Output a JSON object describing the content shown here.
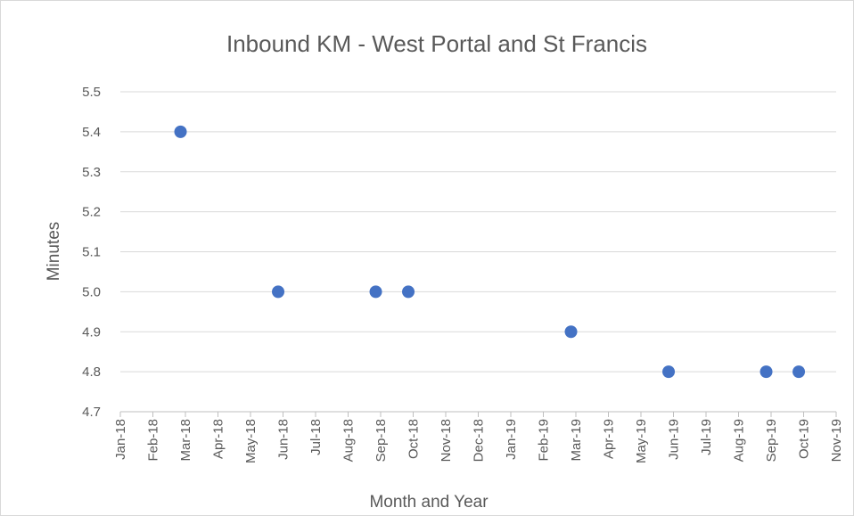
{
  "chart_data": {
    "type": "scatter",
    "title": "Inbound KM - West Portal and St Francis",
    "x_label": "Month and Year",
    "y_label": "Minutes",
    "x": [
      "2018-02",
      "2018-05",
      "2018-08",
      "2018-09",
      "2019-02",
      "2019-05",
      "2019-08",
      "2019-09"
    ],
    "series": [
      {
        "name": "Minutes",
        "color": "#4472c4",
        "values": [
          5.4,
          5.0,
          5.0,
          5.0,
          4.9,
          4.8,
          4.8,
          4.8
        ]
      }
    ],
    "xlim": [
      "2018-01",
      "2019-11"
    ],
    "xticks": [
      {
        "value": "2018-01",
        "label": "Jan-18"
      },
      {
        "value": "2018-02",
        "label": "Feb-18"
      },
      {
        "value": "2018-03",
        "label": "Mar-18"
      },
      {
        "value": "2018-04",
        "label": "Apr-18"
      },
      {
        "value": "2018-05",
        "label": "May-18"
      },
      {
        "value": "2018-06",
        "label": "Jun-18"
      },
      {
        "value": "2018-07",
        "label": "Jul-18"
      },
      {
        "value": "2018-08",
        "label": "Aug-18"
      },
      {
        "value": "2018-09",
        "label": "Sep-18"
      },
      {
        "value": "2018-10",
        "label": "Oct-18"
      },
      {
        "value": "2018-11",
        "label": "Nov-18"
      },
      {
        "value": "2018-12",
        "label": "Dec-18"
      },
      {
        "value": "2019-01",
        "label": "Jan-19"
      },
      {
        "value": "2019-02",
        "label": "Feb-19"
      },
      {
        "value": "2019-03",
        "label": "Mar-19"
      },
      {
        "value": "2019-04",
        "label": "Apr-19"
      },
      {
        "value": "2019-05",
        "label": "May-19"
      },
      {
        "value": "2019-06",
        "label": "Jun-19"
      },
      {
        "value": "2019-07",
        "label": "Jul-19"
      },
      {
        "value": "2019-08",
        "label": "Aug-19"
      },
      {
        "value": "2019-09",
        "label": "Sep-19"
      },
      {
        "value": "2019-10",
        "label": "Oct-19"
      },
      {
        "value": "2019-11",
        "label": "Nov-19"
      }
    ],
    "ylim": [
      4.7,
      5.5
    ],
    "yticks": [
      {
        "value": 4.7,
        "label": "4.7"
      },
      {
        "value": 4.8,
        "label": "4.8"
      },
      {
        "value": 4.9,
        "label": "4.9"
      },
      {
        "value": 5.0,
        "label": "5.0"
      },
      {
        "value": 5.1,
        "label": "5.1"
      },
      {
        "value": 5.2,
        "label": "5.2"
      },
      {
        "value": 5.3,
        "label": "5.3"
      },
      {
        "value": 5.4,
        "label": "5.4"
      },
      {
        "value": 5.5,
        "label": "5.5"
      }
    ],
    "grid": true
  }
}
